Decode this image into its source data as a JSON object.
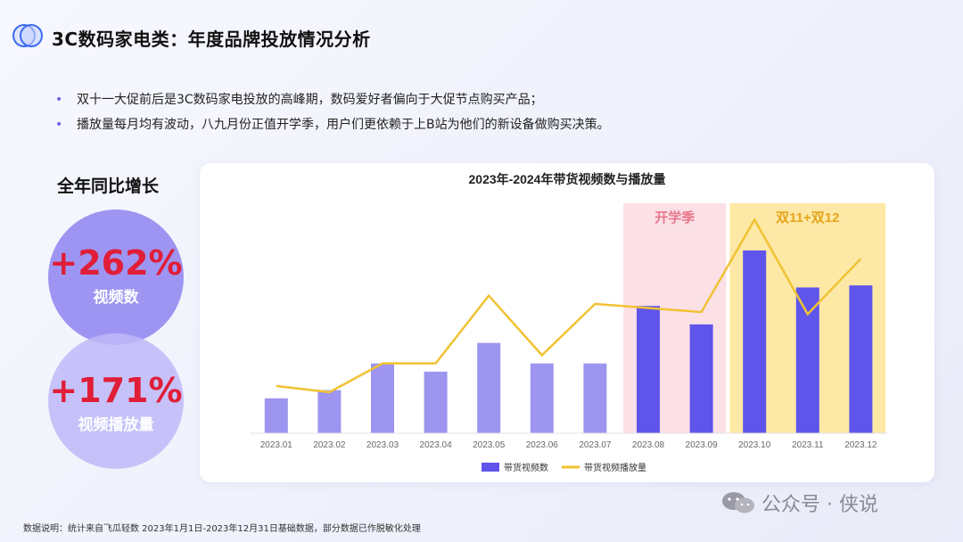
{
  "header": {
    "title": "3C数码家电类：年度品牌投放情况分析"
  },
  "bullets": [
    "双十一大促前后是3C数码家电投放的高峰期，数码爱好者偏向于大促节点购买产品；",
    "播放量每月均有波动，八九月份正值开学季，用户们更依赖于上B站为他们的新设备做购买决策。"
  ],
  "growth": {
    "heading": "全年同比增长",
    "items": [
      {
        "value": "+262%",
        "label": "视频数"
      },
      {
        "value": "+171%",
        "label": "视频播放量"
      }
    ]
  },
  "chart_data": {
    "type": "bar",
    "title": "2023年-2024年带货视频数与播放量",
    "categories": [
      "2023.01",
      "2023.02",
      "2023.03",
      "2023.04",
      "2023.05",
      "2023.06",
      "2023.07",
      "2023.08",
      "2023.09",
      "2023.10",
      "2023.11",
      "2023.12"
    ],
    "series": [
      {
        "name": "带货视频数",
        "kind": "bar",
        "values": [
          17,
          21,
          34,
          30,
          44,
          34,
          34,
          62,
          53,
          89,
          71,
          72
        ]
      },
      {
        "name": "带货视频播放量",
        "kind": "line",
        "values": [
          23,
          20,
          34,
          34,
          67,
          38,
          63,
          61,
          59,
          104,
          58,
          85
        ]
      }
    ],
    "ylim": [
      0,
      112
    ],
    "grid": false,
    "legend": "bottom",
    "highlights": [
      {
        "label": "开学季",
        "from": "2023.08",
        "to": "2023.09",
        "color": "#fbe0e6",
        "label_color": "#e8788c"
      },
      {
        "label": "双11+双12",
        "from": "2023.10",
        "to": "2023.12",
        "color": "#fde8a6",
        "label_color": "#e5a51c"
      }
    ],
    "colors": {
      "bar_normal": "#9d95ef",
      "bar_highlight": "#5f55ea",
      "line": "#f1c232"
    }
  },
  "footnote": "数据说明：统计来自飞瓜轻数 2023年1月1日-2023年12月31日基础数据，部分数据已作脱敏化处理",
  "watermark": {
    "text": "公众号 · 侠说",
    "icon": "wechat-icon"
  }
}
